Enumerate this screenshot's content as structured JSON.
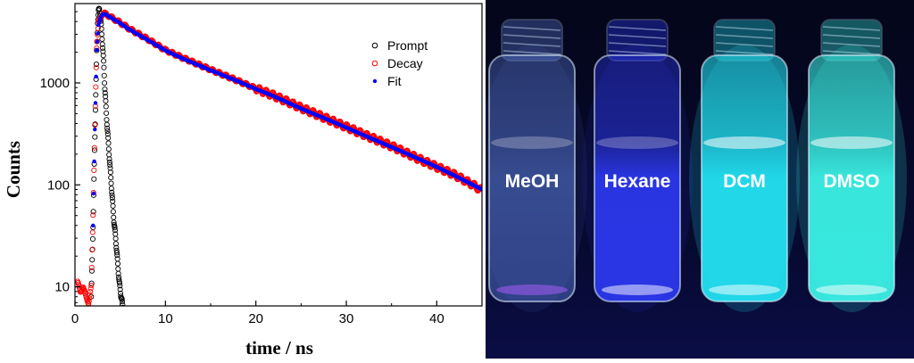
{
  "chart_data": {
    "type": "scatter",
    "xlabel": "time / ns",
    "ylabel": "Counts",
    "xlim": [
      0,
      45
    ],
    "ylim": [
      6.5,
      6000
    ],
    "y_scale": "log",
    "x_ticks": [
      0,
      10,
      20,
      30,
      40
    ],
    "y_ticks": [
      10,
      100,
      1000
    ],
    "legend_position": "top-right",
    "series": [
      {
        "name": "Prompt",
        "color": "#000000",
        "marker": "open-circle",
        "x": [
          1.8,
          2.0,
          2.2,
          2.4,
          2.5,
          2.6,
          2.7,
          2.8,
          2.9,
          3.0,
          3.1,
          3.2,
          3.3,
          3.5,
          3.7,
          3.9,
          4.1,
          4.3,
          4.5,
          4.7,
          4.9,
          5.1,
          5.3
        ],
        "y": [
          8,
          40,
          300,
          2000,
          4000,
          5000,
          5300,
          4500,
          3600,
          2800,
          2000,
          1400,
          900,
          450,
          250,
          140,
          80,
          45,
          30,
          18,
          11,
          8,
          6.5
        ]
      },
      {
        "name": "Decay",
        "color": "#ff0000",
        "marker": "open-circle",
        "x": [
          0.3,
          0.6,
          0.9,
          1.2,
          1.5,
          1.8,
          2.0,
          2.2,
          2.4,
          2.6,
          2.8,
          3.0,
          3.2,
          3.5,
          4,
          5,
          6,
          8,
          10,
          12,
          15,
          18,
          20,
          22,
          25,
          28,
          30,
          32,
          35,
          38,
          40,
          42,
          44,
          45
        ],
        "y": [
          11,
          9,
          10,
          8,
          7,
          10,
          50,
          400,
          2200,
          3800,
          4400,
          4700,
          4800,
          4700,
          4400,
          3900,
          3400,
          2700,
          2100,
          1750,
          1350,
          1050,
          880,
          750,
          570,
          440,
          370,
          310,
          240,
          180,
          150,
          125,
          100,
          88
        ]
      },
      {
        "name": "Fit",
        "color": "#0000ff",
        "marker": "dot",
        "x": [
          2.0,
          2.2,
          2.4,
          2.6,
          2.8,
          3.0,
          3.2,
          3.5,
          4,
          5,
          6,
          8,
          10,
          12,
          15,
          18,
          20,
          22,
          25,
          28,
          30,
          32,
          35,
          38,
          40,
          42,
          44,
          45
        ],
        "y": [
          40,
          350,
          2100,
          3700,
          4300,
          4650,
          4750,
          4650,
          4350,
          3850,
          3350,
          2650,
          2080,
          1720,
          1330,
          1040,
          870,
          740,
          560,
          435,
          365,
          305,
          235,
          180,
          150,
          123,
          100,
          90
        ]
      }
    ]
  },
  "photo": {
    "vials": [
      {
        "label": "MeOH",
        "glow": "#5a7ad8"
      },
      {
        "label": "Hexane",
        "glow": "#2f3cff"
      },
      {
        "label": "DCM",
        "glow": "#22e0f0"
      },
      {
        "label": "DMSO",
        "glow": "#3af0e4"
      }
    ]
  }
}
